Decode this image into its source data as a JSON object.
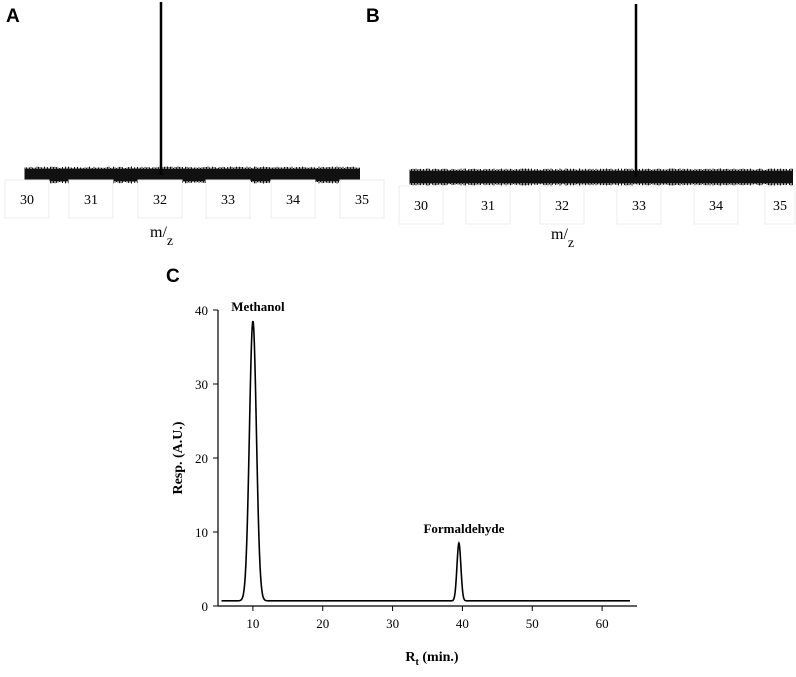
{
  "chart_data": [
    {
      "panel": "A",
      "type": "bar",
      "xlabel_main": "m",
      "xlabel_sub": "z",
      "xticks": [
        "30",
        "31",
        "32",
        "33",
        "34",
        "35"
      ],
      "xlim": [
        30,
        35
      ],
      "peaks": [
        {
          "x": 32,
          "y": 100
        }
      ],
      "baseline_noise": true
    },
    {
      "panel": "B",
      "type": "bar",
      "xlabel_main": "m",
      "xlabel_sub": "z",
      "xticks": [
        "30",
        "31",
        "32",
        "33",
        "34",
        "35"
      ],
      "xlim": [
        30,
        35
      ],
      "peaks": [
        {
          "x": 33,
          "y": 100
        }
      ],
      "baseline_noise": true
    },
    {
      "panel": "C",
      "type": "line",
      "ylabel": "Resp. (A.U.)",
      "xlabel_main": "R",
      "xlabel_sub": "t",
      "xlabel_rest": " (min.)",
      "xlim": [
        5,
        65
      ],
      "ylim": [
        0,
        40
      ],
      "xticks": [
        "10",
        "20",
        "30",
        "40",
        "50",
        "60"
      ],
      "yticks": [
        "0",
        "10",
        "20",
        "30",
        "40"
      ],
      "baseline": 0.7,
      "peaks": [
        {
          "label": "Methanol",
          "x": 10,
          "y": 38.5,
          "width": 0.5
        },
        {
          "label": "Formaldehyde",
          "x": 39.5,
          "y": 8.5,
          "width": 0.28
        }
      ],
      "x_range": [
        5.5,
        64
      ]
    }
  ]
}
